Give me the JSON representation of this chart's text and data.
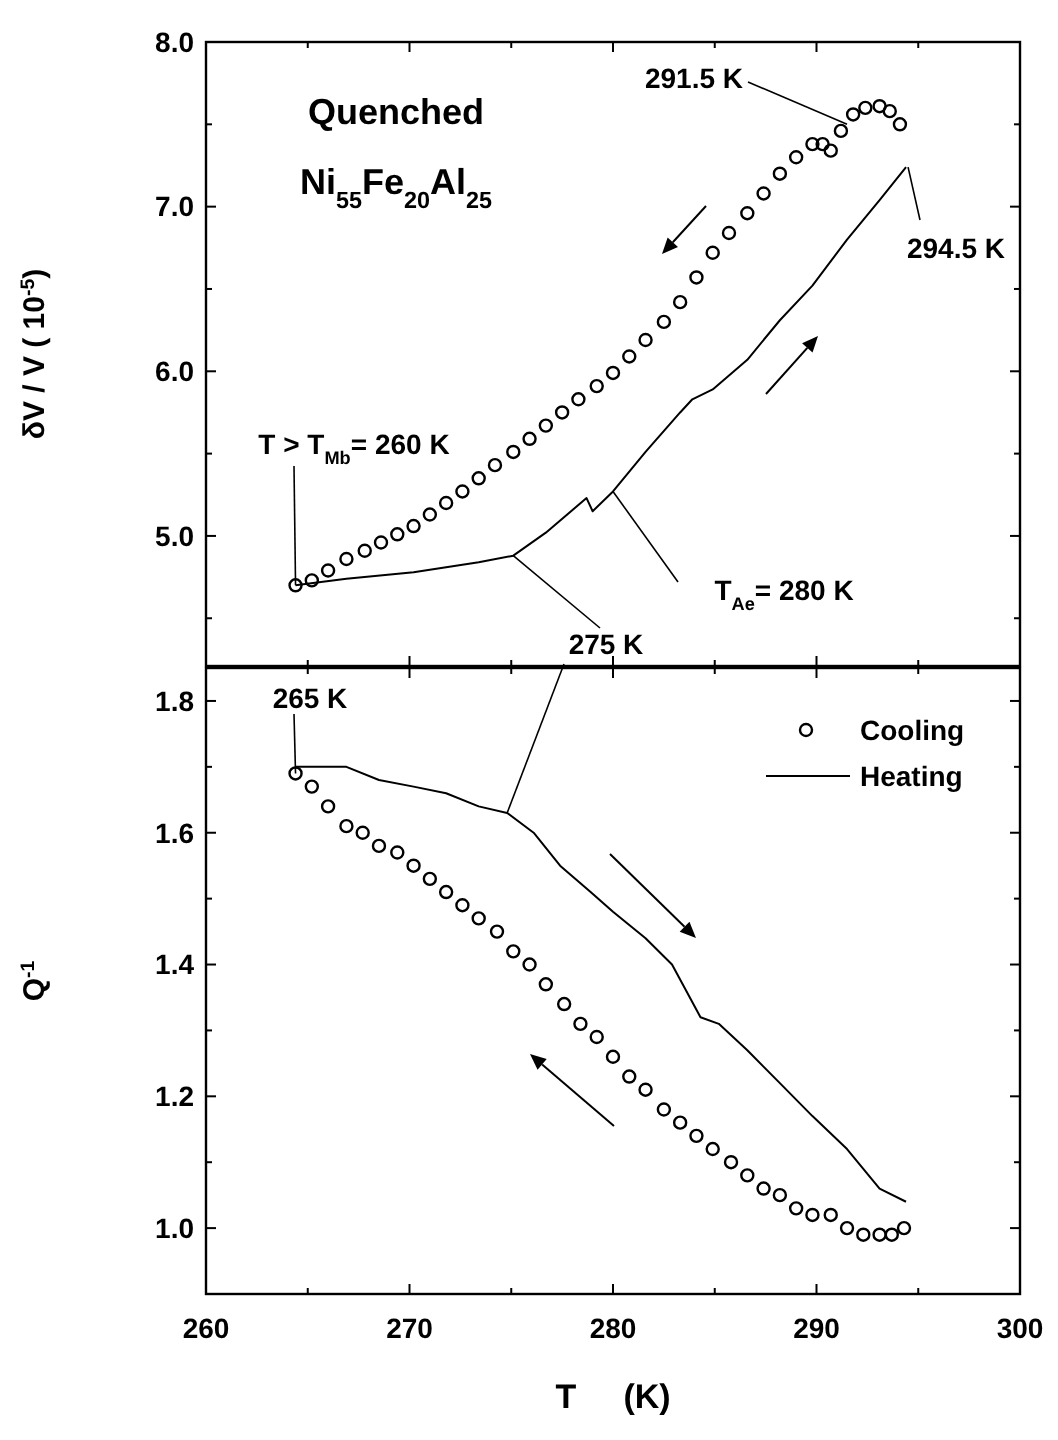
{
  "chart_data": [
    {
      "type": "scatter",
      "ylabel": "δV / V   ( 10$^{-5}$)",
      "xlim": [
        260,
        300
      ],
      "xticks": [
        260,
        270,
        280,
        290,
        300
      ],
      "ylim": [
        4.21,
        8.0
      ],
      "yticks": [
        {
          "value": 5,
          "label": "5.0"
        },
        {
          "value": 6,
          "label": "6.0"
        },
        {
          "value": 7,
          "label": "7.0"
        },
        {
          "value": 8,
          "label": "8.0"
        }
      ],
      "tick_labels": "y",
      "legend": false,
      "grid": false,
      "series": [
        {
          "type": "scatter",
          "marker": "circle",
          "color": "#000000",
          "x": [
            264.4,
            265.2,
            266.0,
            266.9,
            267.8,
            268.6,
            269.4,
            270.2,
            271.0,
            271.8,
            272.6,
            273.4,
            274.2,
            275.1,
            275.9,
            276.7,
            277.5,
            278.3,
            279.2,
            280.0,
            280.8,
            281.6,
            282.5,
            283.3,
            284.1,
            284.9,
            285.7,
            286.6,
            287.4,
            288.2,
            289.0,
            289.8,
            290.3,
            290.7,
            291.2,
            291.8,
            292.4,
            293.1,
            293.6,
            294.1
          ],
          "values": [
            4.7,
            4.73,
            4.79,
            4.86,
            4.91,
            4.96,
            5.01,
            5.06,
            5.13,
            5.2,
            5.27,
            5.35,
            5.43,
            5.51,
            5.59,
            5.67,
            5.75,
            5.83,
            5.91,
            5.99,
            6.09,
            6.19,
            6.3,
            6.42,
            6.57,
            6.72,
            6.84,
            6.96,
            7.08,
            7.2,
            7.3,
            7.38,
            7.38,
            7.34,
            7.46,
            7.56,
            7.6,
            7.61,
            7.58,
            7.5
          ]
        },
        {
          "type": "line",
          "color": "#000000",
          "x": [
            264.4,
            266.9,
            270.2,
            273.4,
            275.1,
            276.7,
            278.7,
            279.0,
            280.0,
            281.6,
            283.3,
            283.9,
            284.9,
            286.6,
            288.2,
            289.8,
            291.5,
            293.1,
            294.4
          ],
          "values": [
            4.7,
            4.74,
            4.78,
            4.84,
            4.88,
            5.02,
            5.23,
            5.15,
            5.27,
            5.51,
            5.75,
            5.83,
            5.89,
            6.07,
            6.31,
            6.52,
            6.8,
            7.04,
            7.24
          ]
        }
      ],
      "annotations": [
        "Quenched",
        "Ni$_{55}$Fe$_{20}$Al$_{25}$",
        {
          "text": "291.5 K",
          "x": 291.5,
          "y": 7.5
        },
        {
          "text": "294.5 K",
          "x": 294.5,
          "y": 7.24
        },
        {
          "text": "T > T$_{Mb}$= 260 K",
          "x": 264.4,
          "y": 4.7
        },
        {
          "text": "T$_{Ae}$= 280 K",
          "x": 280.0,
          "y": 5.27
        },
        {
          "text": "275 K",
          "x": 275.1,
          "y": 4.88
        }
      ]
    },
    {
      "type": "scatter",
      "xlabel": "T     (K)",
      "ylabel": "Q$^{-1}$",
      "xlim": [
        260,
        300
      ],
      "xticks": [
        260,
        270,
        280,
        290,
        300
      ],
      "ylim": [
        0.9,
        1.85
      ],
      "yticks": [
        {
          "value": 1,
          "label": "1.0"
        },
        1.2,
        1.4,
        1.6,
        1.8
      ],
      "legend": "top right",
      "grid": false,
      "series": [
        {
          "type": "scatter",
          "name": "Cooling",
          "marker": "circle",
          "color": "#000000",
          "x": [
            264.4,
            265.2,
            266.0,
            266.9,
            267.7,
            268.5,
            269.4,
            270.2,
            271.0,
            271.8,
            272.6,
            273.4,
            274.3,
            275.1,
            275.9,
            276.7,
            277.6,
            278.4,
            279.2,
            280.0,
            280.8,
            281.6,
            282.5,
            283.3,
            284.1,
            284.9,
            285.8,
            286.6,
            287.4,
            288.2,
            289.0,
            289.8,
            290.7,
            291.5,
            292.3,
            293.1,
            293.7,
            294.3
          ],
          "values": [
            1.69,
            1.67,
            1.64,
            1.61,
            1.6,
            1.58,
            1.57,
            1.55,
            1.53,
            1.51,
            1.49,
            1.47,
            1.45,
            1.42,
            1.4,
            1.37,
            1.34,
            1.31,
            1.29,
            1.26,
            1.23,
            1.21,
            1.18,
            1.16,
            1.14,
            1.12,
            1.1,
            1.08,
            1.06,
            1.05,
            1.03,
            1.02,
            1.02,
            1.0,
            0.99,
            0.99,
            0.99,
            1.0
          ]
        },
        {
          "type": "line",
          "name": "Heating",
          "color": "#000000",
          "x": [
            264.4,
            266.9,
            268.5,
            270.2,
            271.8,
            273.4,
            274.8,
            276.1,
            277.4,
            278.9,
            280.0,
            281.6,
            282.9,
            284.3,
            285.2,
            286.6,
            288.2,
            289.8,
            291.5,
            293.1,
            294.4
          ],
          "values": [
            1.7,
            1.7,
            1.68,
            1.67,
            1.66,
            1.64,
            1.63,
            1.6,
            1.55,
            1.51,
            1.48,
            1.44,
            1.4,
            1.32,
            1.31,
            1.27,
            1.22,
            1.17,
            1.12,
            1.06,
            1.04
          ]
        }
      ],
      "annotations": [
        {
          "text": "265 K",
          "x": 264.4,
          "y": 1.69
        }
      ]
    }
  ]
}
